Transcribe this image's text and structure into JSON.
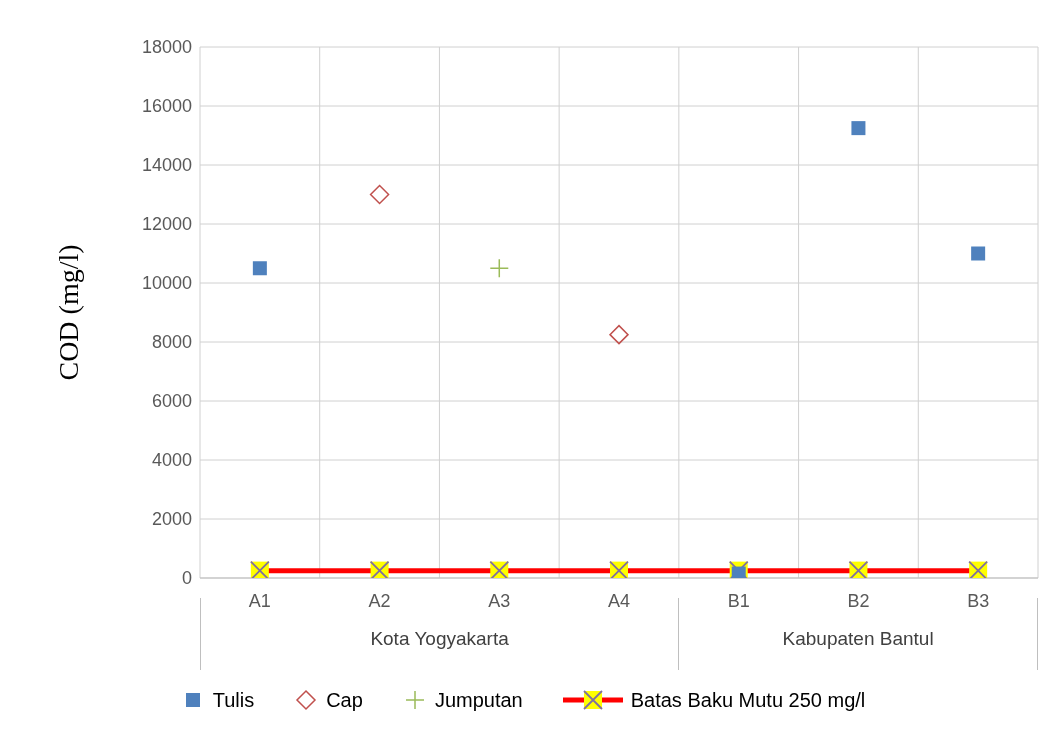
{
  "chart_data": {
    "type": "scatter",
    "ylabel": "COD (mg/l)",
    "categories": [
      "A1",
      "A2",
      "A3",
      "A4",
      "B1",
      "B2",
      "B3"
    ],
    "series": [
      {
        "name": "Tulis",
        "color": "#4f81bd",
        "marker": "square",
        "values": [
          10500,
          null,
          null,
          null,
          150,
          15250,
          11000
        ]
      },
      {
        "name": "Cap",
        "color": "#c0504d",
        "marker": "diamond",
        "values": [
          null,
          13000,
          null,
          8250,
          null,
          null,
          null
        ]
      },
      {
        "name": "Jumputan",
        "color": "#9bbb59",
        "marker": "cross",
        "values": [
          null,
          null,
          10500,
          null,
          null,
          null,
          null
        ]
      },
      {
        "name": "Batas Baku Mutu 250 mg/l",
        "type": "line",
        "color": "#ff0000",
        "marker": "square",
        "values": [
          250,
          250,
          250,
          250,
          250,
          250,
          250
        ]
      }
    ],
    "ylim": [
      0,
      18000
    ],
    "yticks": [
      0,
      2000,
      4000,
      6000,
      8000,
      10000,
      12000,
      14000,
      16000,
      18000
    ],
    "grid": true,
    "legend": "bottom",
    "annotations": [
      "Kota Yogyakarta",
      "Kabupaten Bantul"
    ]
  }
}
